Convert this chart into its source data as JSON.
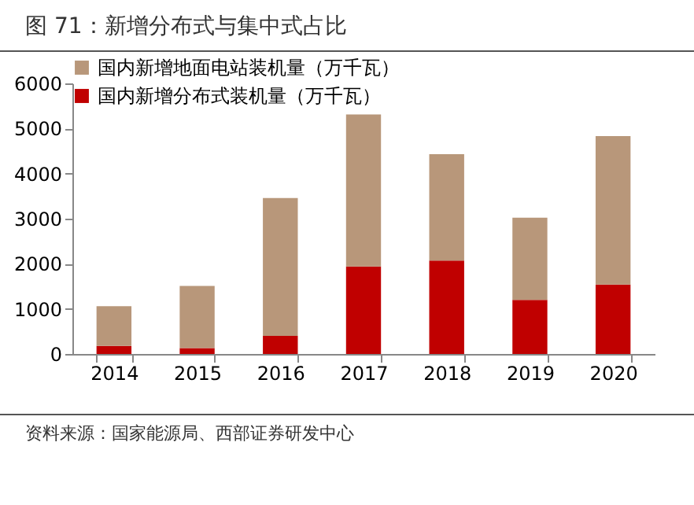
{
  "chart_data": {
    "type": "bar",
    "title": "图 71：新增分布式与集中式占比",
    "categories": [
      "2014",
      "2015",
      "2016",
      "2017",
      "2018",
      "2019",
      "2020"
    ],
    "series": [
      {
        "name": "国内新增分布式装机量（万千瓦）",
        "color": "#c00000",
        "values": [
          180,
          130,
          400,
          1940,
          2070,
          1200,
          1540
        ]
      },
      {
        "name": "国内新增地面电站装机量（万千瓦）",
        "color": "#b8977a",
        "values": [
          880,
          1380,
          3060,
          3370,
          2360,
          1820,
          3290
        ]
      }
    ],
    "stacked": true,
    "ylim": [
      0,
      6000
    ],
    "yticks": [
      0,
      1000,
      2000,
      3000,
      4000,
      5000,
      6000
    ],
    "grid": false,
    "legend": "top",
    "annotations": [
      "资料来源：国家能源局、西部证券研发中心"
    ]
  }
}
